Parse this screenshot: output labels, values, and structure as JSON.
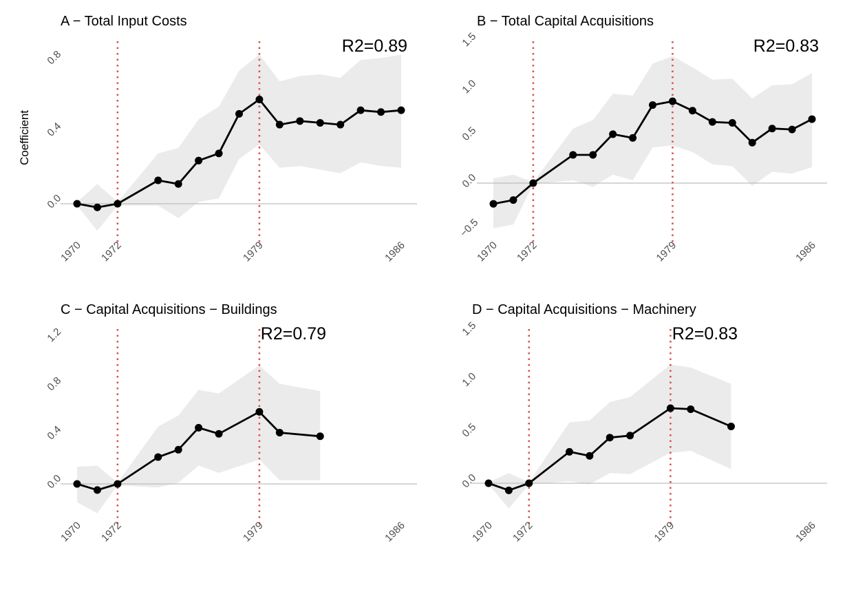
{
  "figure": {
    "ylabel": "Coefficient"
  },
  "style": {
    "band_color": "#ebebeb",
    "line_color": "#000000",
    "vline_color": "#d9534f",
    "zero_line_color": "#bdbdbd"
  },
  "chart_data": [
    {
      "type": "line",
      "title": "A − Total Input Costs",
      "r2": "R2=0.89",
      "xlabel": "",
      "ylabel": "Coefficient",
      "x_ticks": [
        1970,
        1972,
        1979,
        1986
      ],
      "y_ticks": [
        "0.0",
        "0.4",
        "0.8"
      ],
      "xlim": [
        1970,
        1986
      ],
      "ylim": [
        -0.15,
        0.99
      ],
      "reference_lines_x": [
        1972,
        1979
      ],
      "points": [
        {
          "x": 1970,
          "y": 0.0,
          "lo": -0.01,
          "hi": 0.01
        },
        {
          "x": 1971,
          "y": -0.02,
          "lo": -0.15,
          "hi": 0.11
        },
        {
          "x": 1972,
          "y": 0.0,
          "lo": -0.01,
          "hi": 0.01
        },
        {
          "x": 1974,
          "y": 0.13,
          "lo": -0.01,
          "hi": 0.28
        },
        {
          "x": 1975,
          "y": 0.11,
          "lo": -0.08,
          "hi": 0.31
        },
        {
          "x": 1976,
          "y": 0.24,
          "lo": 0.01,
          "hi": 0.47
        },
        {
          "x": 1977,
          "y": 0.28,
          "lo": 0.03,
          "hi": 0.54
        },
        {
          "x": 1978,
          "y": 0.5,
          "lo": 0.25,
          "hi": 0.74
        },
        {
          "x": 1979,
          "y": 0.58,
          "lo": 0.33,
          "hi": 0.83
        },
        {
          "x": 1980,
          "y": 0.44,
          "lo": 0.2,
          "hi": 0.68
        },
        {
          "x": 1981,
          "y": 0.46,
          "lo": 0.21,
          "hi": 0.71
        },
        {
          "x": 1982,
          "y": 0.45,
          "lo": 0.19,
          "hi": 0.72
        },
        {
          "x": 1983,
          "y": 0.44,
          "lo": 0.17,
          "hi": 0.7
        },
        {
          "x": 1984,
          "y": 0.52,
          "lo": 0.23,
          "hi": 0.8
        },
        {
          "x": 1985,
          "y": 0.51,
          "lo": 0.21,
          "hi": 0.81
        },
        {
          "x": 1986,
          "y": 0.52,
          "lo": 0.2,
          "hi": 0.83
        }
      ]
    },
    {
      "type": "line",
      "title": "B − Total Capital Acquisitions",
      "r2": "R2=0.83",
      "xlabel": "",
      "ylabel": "",
      "x_ticks": [
        1970,
        1972,
        1979,
        1986
      ],
      "y_ticks": [
        "−0.5",
        "0.0",
        "0.5",
        "1.0",
        "1.5"
      ],
      "xlim": [
        1970,
        1986
      ],
      "ylim": [
        -0.5,
        1.5
      ],
      "reference_lines_x": [
        1972,
        1979
      ],
      "points": [
        {
          "x": 1970,
          "y": -0.22,
          "lo": -0.48,
          "hi": 0.05
        },
        {
          "x": 1971,
          "y": -0.18,
          "lo": -0.44,
          "hi": 0.09
        },
        {
          "x": 1972,
          "y": 0.0,
          "lo": -0.01,
          "hi": 0.01
        },
        {
          "x": 1974,
          "y": 0.3,
          "lo": 0.03,
          "hi": 0.58
        },
        {
          "x": 1975,
          "y": 0.3,
          "lo": -0.04,
          "hi": 0.67
        },
        {
          "x": 1976,
          "y": 0.52,
          "lo": 0.09,
          "hi": 0.95
        },
        {
          "x": 1977,
          "y": 0.48,
          "lo": 0.03,
          "hi": 0.93
        },
        {
          "x": 1978,
          "y": 0.83,
          "lo": 0.38,
          "hi": 1.27
        },
        {
          "x": 1979,
          "y": 0.87,
          "lo": 0.4,
          "hi": 1.35
        },
        {
          "x": 1980,
          "y": 0.77,
          "lo": 0.33,
          "hi": 1.23
        },
        {
          "x": 1981,
          "y": 0.65,
          "lo": 0.2,
          "hi": 1.1
        },
        {
          "x": 1982,
          "y": 0.64,
          "lo": 0.18,
          "hi": 1.11
        },
        {
          "x": 1983,
          "y": 0.43,
          "lo": -0.03,
          "hi": 0.9
        },
        {
          "x": 1984,
          "y": 0.58,
          "lo": 0.12,
          "hi": 1.04
        },
        {
          "x": 1985,
          "y": 0.57,
          "lo": 0.1,
          "hi": 1.05
        },
        {
          "x": 1986,
          "y": 0.68,
          "lo": 0.17,
          "hi": 1.17
        }
      ]
    },
    {
      "type": "line",
      "title": "C − Capital Acquisitions − Buildings",
      "r2": "R2=0.79",
      "xlabel": "",
      "ylabel": "",
      "x_ticks": [
        1970,
        1972,
        1979,
        1986
      ],
      "y_ticks": [
        "0.0",
        "0.4",
        "0.8",
        "1.2"
      ],
      "xlim": [
        1970,
        1986
      ],
      "ylim": [
        -0.25,
        1.2
      ],
      "reference_lines_x": [
        1972,
        1979
      ],
      "points": [
        {
          "x": 1970,
          "y": 0.0,
          "lo": -0.15,
          "hi": 0.14
        },
        {
          "x": 1971,
          "y": -0.05,
          "lo": -0.24,
          "hi": 0.15
        },
        {
          "x": 1972,
          "y": 0.0,
          "lo": -0.01,
          "hi": 0.01
        },
        {
          "x": 1974,
          "y": 0.22,
          "lo": -0.03,
          "hi": 0.47
        },
        {
          "x": 1975,
          "y": 0.28,
          "lo": 0.01,
          "hi": 0.56
        },
        {
          "x": 1976,
          "y": 0.46,
          "lo": 0.15,
          "hi": 0.77
        },
        {
          "x": 1977,
          "y": 0.41,
          "lo": 0.09,
          "hi": 0.74
        },
        {
          "x": 1979,
          "y": 0.59,
          "lo": 0.2,
          "hi": 0.97
        },
        {
          "x": 1980,
          "y": 0.42,
          "lo": 0.03,
          "hi": 0.82
        },
        {
          "x": 1982,
          "y": 0.39,
          "lo": 0.03,
          "hi": 0.76
        }
      ]
    },
    {
      "type": "line",
      "title": "D − Capital Acquisitions − Machinery",
      "r2": "R2=0.83",
      "xlabel": "",
      "ylabel": "",
      "x_ticks": [
        1970,
        1972,
        1979,
        1986
      ],
      "y_ticks": [
        "0.0",
        "0.5",
        "1.0",
        "1.5"
      ],
      "xlim": [
        1970,
        1986
      ],
      "ylim": [
        -0.25,
        1.5
      ],
      "reference_lines_x": [
        1972,
        1979
      ],
      "points": [
        {
          "x": 1970,
          "y": 0.0,
          "lo": -0.01,
          "hi": 0.01
        },
        {
          "x": 1971,
          "y": -0.07,
          "lo": -0.25,
          "hi": 0.1
        },
        {
          "x": 1972,
          "y": 0.0,
          "lo": -0.01,
          "hi": 0.01
        },
        {
          "x": 1974,
          "y": 0.31,
          "lo": 0.02,
          "hi": 0.6
        },
        {
          "x": 1975,
          "y": 0.27,
          "lo": -0.01,
          "hi": 0.62
        },
        {
          "x": 1976,
          "y": 0.45,
          "lo": 0.1,
          "hi": 0.8
        },
        {
          "x": 1977,
          "y": 0.47,
          "lo": 0.09,
          "hi": 0.85
        },
        {
          "x": 1979,
          "y": 0.74,
          "lo": 0.3,
          "hi": 1.17
        },
        {
          "x": 1980,
          "y": 0.73,
          "lo": 0.32,
          "hi": 1.14
        },
        {
          "x": 1982,
          "y": 0.56,
          "lo": 0.14,
          "hi": 0.98
        }
      ]
    }
  ]
}
